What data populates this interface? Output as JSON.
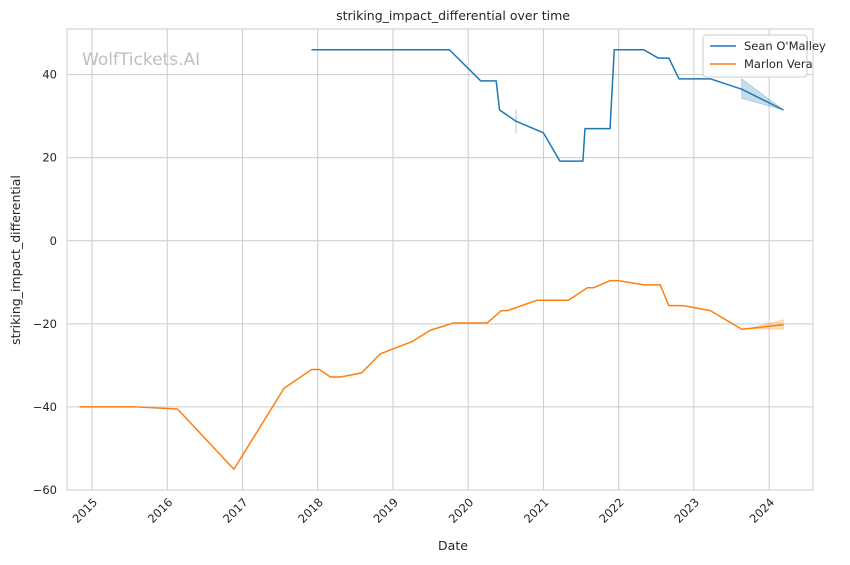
{
  "chart_data": {
    "type": "line",
    "title": "striking_impact_differential over time",
    "xlabel": "Date",
    "ylabel": "striking_impact_differential",
    "watermark": "WolfTickets.AI",
    "x_ticks": [
      "2015",
      "2016",
      "2017",
      "2018",
      "2019",
      "2020",
      "2021",
      "2022",
      "2023",
      "2024"
    ],
    "y_ticks": [
      -60,
      -40,
      -20,
      0,
      20,
      40
    ],
    "ylim": [
      -60,
      51
    ],
    "xlim": [
      "2014-09-01",
      "2024-08-01"
    ],
    "grid": true,
    "legend_position": "top-right",
    "series": [
      {
        "name": "Sean O'Malley",
        "color": "#1f77b4",
        "points": [
          [
            "2017-12-01",
            46
          ],
          [
            "2019-10-01",
            46
          ],
          [
            "2020-03-01",
            38.5
          ],
          [
            "2020-05-15",
            38.5
          ],
          [
            "2020-06-01",
            31.5
          ],
          [
            "2020-08-20",
            28.8
          ],
          [
            "2021-01-01",
            26
          ],
          [
            "2021-03-20",
            19.2
          ],
          [
            "2021-07-10",
            19.2
          ],
          [
            "2021-07-20",
            27
          ],
          [
            "2021-11-20",
            27
          ],
          [
            "2021-12-10",
            46
          ],
          [
            "2022-05-01",
            46
          ],
          [
            "2022-07-10",
            44
          ],
          [
            "2022-09-01",
            44
          ],
          [
            "2022-10-20",
            39
          ],
          [
            "2023-03-20",
            39
          ],
          [
            "2023-08-20",
            36.5
          ],
          [
            "2024-03-10",
            31.5
          ]
        ],
        "bands": [
          {
            "x": [
              "2020-08-20",
              "2020-08-20"
            ],
            "lower": [
              26,
              26
            ],
            "upper": [
              31.5,
              31.5
            ]
          },
          {
            "x": [
              "2023-08-20",
              "2024-03-10"
            ],
            "lower": [
              34.3,
              31.5
            ],
            "upper": [
              39,
              31.5
            ]
          }
        ]
      },
      {
        "name": "Marlon Vera",
        "color": "#ff7f0e",
        "points": [
          [
            "2014-11-01",
            -40
          ],
          [
            "2015-08-01",
            -40
          ],
          [
            "2016-02-20",
            -40.5
          ],
          [
            "2016-11-20",
            -55
          ],
          [
            "2017-07-20",
            -35.5
          ],
          [
            "2017-12-01",
            -31
          ],
          [
            "2018-01-10",
            -31
          ],
          [
            "2018-03-01",
            -32.8
          ],
          [
            "2018-04-20",
            -32.8
          ],
          [
            "2018-08-01",
            -31.8
          ],
          [
            "2018-11-01",
            -27.2
          ],
          [
            "2019-04-01",
            -24.3
          ],
          [
            "2019-07-01",
            -21.5
          ],
          [
            "2019-10-20",
            -19.8
          ],
          [
            "2020-04-01",
            -19.8
          ],
          [
            "2020-06-10",
            -16.8
          ],
          [
            "2020-07-10",
            -16.8
          ],
          [
            "2020-12-01",
            -14.3
          ],
          [
            "2021-05-01",
            -14.3
          ],
          [
            "2021-08-01",
            -11.3
          ],
          [
            "2021-09-01",
            -11.3
          ],
          [
            "2021-11-20",
            -9.6
          ],
          [
            "2022-01-01",
            -9.6
          ],
          [
            "2022-05-01",
            -10.6
          ],
          [
            "2022-07-20",
            -10.6
          ],
          [
            "2022-09-01",
            -15.6
          ],
          [
            "2022-11-10",
            -15.6
          ],
          [
            "2023-03-20",
            -16.8
          ],
          [
            "2023-08-20",
            -21.3
          ],
          [
            "2024-03-10",
            -20.2
          ]
        ],
        "bands": [
          {
            "x": [
              "2023-10-01",
              "2024-03-10"
            ],
            "lower": [
              -21.2,
              -21.3
            ],
            "upper": [
              -21.0,
              -19.0
            ]
          }
        ]
      }
    ]
  }
}
